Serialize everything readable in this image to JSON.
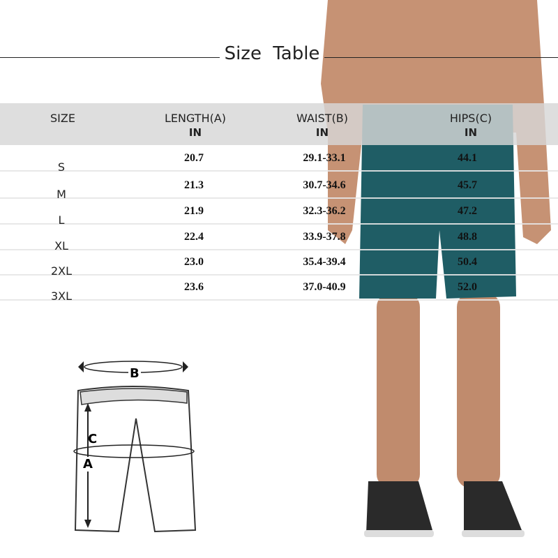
{
  "title": "Size Table",
  "headers": [
    {
      "label": "SIZE",
      "unit": ""
    },
    {
      "label": "LENGTH(A)",
      "unit": "IN"
    },
    {
      "label": "WAIST(B)",
      "unit": "IN"
    },
    {
      "label": "HIPS(C)",
      "unit": "IN"
    }
  ],
  "rows": [
    {
      "size": "S",
      "length": "20.7",
      "waist": "29.1-33.1",
      "hips": "44.1"
    },
    {
      "size": "M",
      "length": "21.3",
      "waist": "30.7-34.6",
      "hips": "45.7"
    },
    {
      "size": "L",
      "length": "21.9",
      "waist": "32.3-36.2",
      "hips": "47.2"
    },
    {
      "size": "XL",
      "length": "22.4",
      "waist": "33.9-37.8",
      "hips": "48.8"
    },
    {
      "size": "2XL",
      "length": "23.0",
      "waist": "35.4-39.4",
      "hips": "50.4"
    },
    {
      "size": "3XL",
      "length": "23.6",
      "waist": "37.0-40.9",
      "hips": "52.0"
    }
  ],
  "diagram": {
    "b": "B",
    "c": "C",
    "a": "A"
  },
  "colors": {
    "shorts": "#1f5d65",
    "skin": "#c69274"
  }
}
